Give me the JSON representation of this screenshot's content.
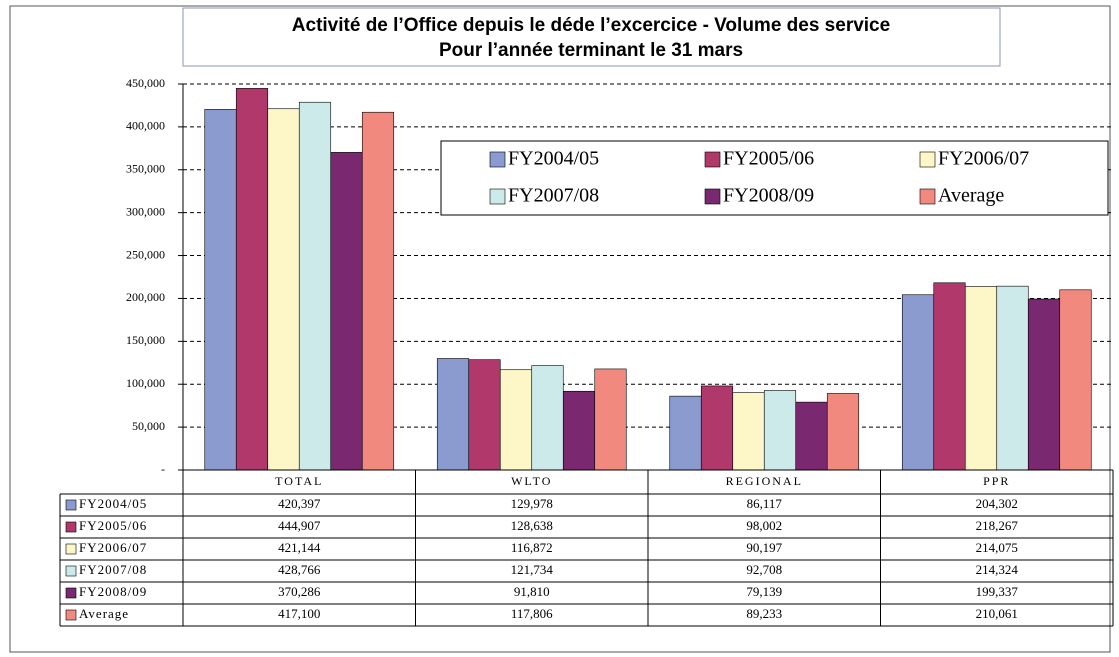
{
  "chart_data": {
    "type": "bar",
    "title": "Activité de l’Office depuis le déde l’excercice - Volume des service",
    "subtitle": "Pour l’année terminant le 31 mars",
    "categories": [
      "TOTAL",
      "WLTO",
      "REGIONAL",
      "PPR"
    ],
    "series": [
      {
        "name": "FY2004/05",
        "color": "#8b9bd0",
        "values": [
          420397,
          129978,
          86117,
          204302
        ],
        "value_labels": [
          "420,397",
          "129,978",
          "86,117",
          "204,302"
        ]
      },
      {
        "name": "FY2005/06",
        "color": "#b0386a",
        "values": [
          444907,
          128638,
          98002,
          218267
        ],
        "value_labels": [
          "444,907",
          "128,638",
          "98,002",
          "218,267"
        ]
      },
      {
        "name": "FY2006/07",
        "color": "#fdf6c6",
        "values": [
          421144,
          116872,
          90197,
          214075
        ],
        "value_labels": [
          "421,144",
          "116,872",
          "90,197",
          "214,075"
        ]
      },
      {
        "name": "FY2007/08",
        "color": "#cdeaea",
        "values": [
          428766,
          121734,
          92708,
          214324
        ],
        "value_labels": [
          "428,766",
          "121,734",
          "92,708",
          "214,324"
        ]
      },
      {
        "name": "FY2008/09",
        "color": "#7a2870",
        "values": [
          370286,
          91810,
          79139,
          199337
        ],
        "value_labels": [
          "370,286",
          "91,810",
          "79,139",
          "199,337"
        ]
      },
      {
        "name": "Average",
        "color": "#f2897f",
        "values": [
          417100,
          117806,
          89233,
          210061
        ],
        "value_labels": [
          "417,100",
          "117,806",
          "89,233",
          "210,061"
        ]
      }
    ],
    "ylim": [
      0,
      450000
    ],
    "yticks": [
      {
        "value": 0,
        "label": "-"
      },
      {
        "value": 50000,
        "label": "50,000"
      },
      {
        "value": 100000,
        "label": "100,000"
      },
      {
        "value": 150000,
        "label": "150,000"
      },
      {
        "value": 200000,
        "label": "200,000"
      },
      {
        "value": 250000,
        "label": "250,000"
      },
      {
        "value": 300000,
        "label": "300,000"
      },
      {
        "value": 350000,
        "label": "350,000"
      },
      {
        "value": 400000,
        "label": "400,000"
      },
      {
        "value": 450000,
        "label": "450,000"
      }
    ],
    "grid": true
  }
}
